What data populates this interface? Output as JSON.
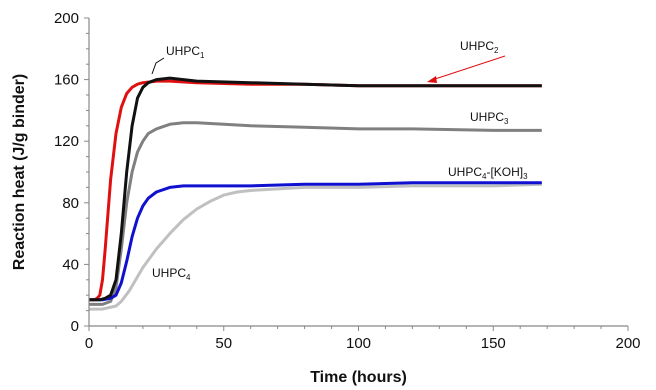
{
  "chart_data": {
    "type": "line",
    "xlabel": "Time (hours)",
    "ylabel": "Reaction heat (J/g binder)",
    "xlim": [
      0,
      200
    ],
    "ylim": [
      0,
      200
    ],
    "xticks": [
      "0",
      "50",
      "100",
      "150",
      "200"
    ],
    "yticks": [
      "0",
      "40",
      "80",
      "120",
      "160",
      "200"
    ],
    "grid": false,
    "series": [
      {
        "name": "UHPC1",
        "label": {
          "base": "UHPC",
          "sub": "1",
          "suffix": ""
        },
        "color": "#111111",
        "x": [
          0,
          4,
          6,
          8,
          10,
          12,
          14,
          16,
          18,
          20,
          22,
          25,
          30,
          35,
          40,
          60,
          80,
          100,
          120,
          150,
          168
        ],
        "y": [
          17,
          17,
          18,
          20,
          30,
          60,
          100,
          130,
          148,
          155,
          158,
          160,
          161,
          160,
          159,
          158,
          157,
          156,
          156,
          156,
          156
        ]
      },
      {
        "name": "UHPC2",
        "label": {
          "base": "UHPC",
          "sub": "2",
          "suffix": ""
        },
        "color": "#e01010",
        "x": [
          0,
          2,
          3,
          4,
          5,
          6,
          8,
          10,
          12,
          14,
          16,
          18,
          20,
          25,
          30,
          40,
          60,
          80,
          100,
          120,
          150,
          168
        ],
        "y": [
          17,
          17,
          18,
          20,
          30,
          50,
          95,
          125,
          142,
          151,
          155,
          157,
          158,
          159,
          159,
          158,
          157,
          157,
          156,
          156,
          156,
          156
        ]
      },
      {
        "name": "UHPC3",
        "label": {
          "base": "UHPC",
          "sub": "3",
          "suffix": ""
        },
        "color": "#808080",
        "x": [
          0,
          5,
          8,
          10,
          12,
          14,
          16,
          18,
          20,
          22,
          25,
          30,
          35,
          40,
          50,
          60,
          80,
          100,
          120,
          150,
          168
        ],
        "y": [
          14,
          14,
          16,
          25,
          50,
          80,
          100,
          113,
          120,
          125,
          128,
          131,
          132,
          132,
          131,
          130,
          129,
          128,
          128,
          127,
          127
        ]
      },
      {
        "name": "UHPC4-[KOH]3",
        "label": {
          "base": "UHPC",
          "sub": "4",
          "suffix": "-[KOH]",
          "sub2": "3"
        },
        "color": "#1010d0",
        "x": [
          0,
          5,
          8,
          10,
          12,
          14,
          16,
          18,
          20,
          22,
          25,
          30,
          35,
          40,
          50,
          60,
          80,
          100,
          120,
          150,
          168
        ],
        "y": [
          17,
          17,
          18,
          20,
          28,
          42,
          58,
          70,
          78,
          83,
          87,
          90,
          91,
          91,
          91,
          91,
          92,
          92,
          93,
          93,
          93
        ]
      },
      {
        "name": "UHPC4",
        "label": {
          "base": "UHPC",
          "sub": "4",
          "suffix": ""
        },
        "color": "#c0c0c0",
        "x": [
          0,
          5,
          10,
          12,
          15,
          18,
          20,
          25,
          30,
          35,
          40,
          45,
          50,
          55,
          60,
          70,
          80,
          100,
          120,
          150,
          168
        ],
        "y": [
          11,
          11,
          13,
          16,
          23,
          32,
          38,
          50,
          60,
          69,
          76,
          81,
          85,
          87,
          88,
          89,
          90,
          90,
          91,
          91,
          92
        ]
      }
    ]
  }
}
